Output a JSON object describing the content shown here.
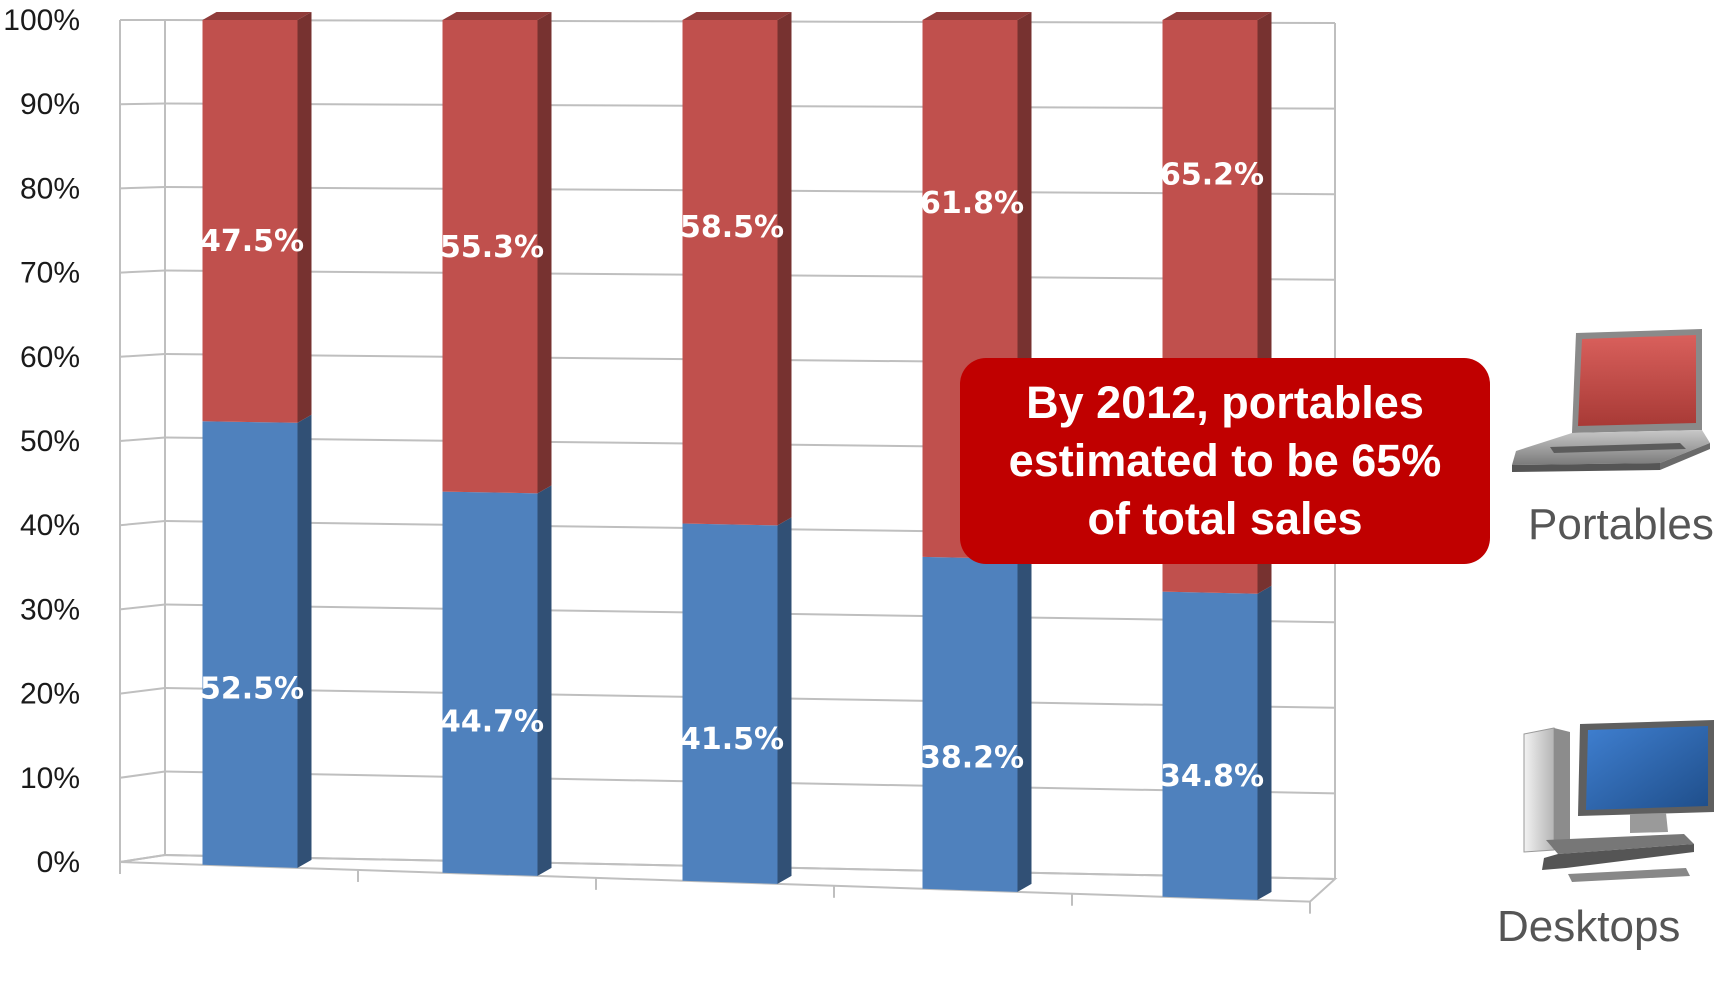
{
  "chart_data": {
    "type": "bar",
    "stacked": true,
    "three_d": true,
    "categories": [
      "",
      "",
      "",
      "",
      ""
    ],
    "series": [
      {
        "name": "Desktops",
        "color": "#4f81bd",
        "values": [
          52.5,
          44.7,
          41.5,
          38.2,
          34.8
        ],
        "labels": [
          "52.5%",
          "44.7%",
          "41.5%",
          "38.2%",
          "34.8%"
        ]
      },
      {
        "name": "Portables",
        "color": "#c0504d",
        "values": [
          47.5,
          55.3,
          58.5,
          61.8,
          65.2
        ],
        "labels": [
          "47.5%",
          "55.3%",
          "58.5%",
          "61.8%",
          "65.2%"
        ]
      }
    ],
    "yticks": [
      "0%",
      "10%",
      "20%",
      "30%",
      "40%",
      "50%",
      "60%",
      "70%",
      "80%",
      "90%",
      "100%"
    ],
    "ylim": [
      0,
      100
    ],
    "grid": true,
    "annotation": {
      "lines": [
        "By 2012, portables",
        "estimated to be 65%",
        "of total sales"
      ],
      "color": "#c00000"
    },
    "legend": {
      "placement": "right",
      "items": [
        {
          "label": "Portables",
          "icon": "laptop-icon"
        },
        {
          "label": "Desktops",
          "icon": "desktop-computer-icon"
        }
      ]
    }
  }
}
